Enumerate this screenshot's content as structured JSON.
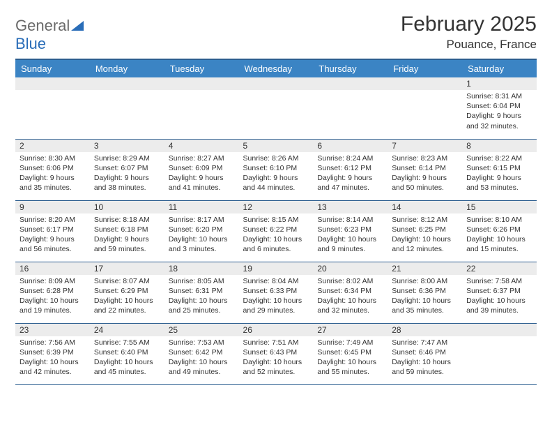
{
  "logo": {
    "line1": "General",
    "line2": "Blue"
  },
  "title": "February 2025",
  "location": "Pouance, France",
  "colors": {
    "header_bg": "#3b84c4",
    "header_text": "#ffffff",
    "rule": "#2a5d8f",
    "daynum_bg": "#ececec",
    "body_text": "#333333",
    "logo_gray": "#6a6a6a",
    "logo_blue": "#2a6db8"
  },
  "weekdays": [
    "Sunday",
    "Monday",
    "Tuesday",
    "Wednesday",
    "Thursday",
    "Friday",
    "Saturday"
  ],
  "weeks": [
    [
      null,
      null,
      null,
      null,
      null,
      null,
      {
        "n": "1",
        "sunrise": "8:31 AM",
        "sunset": "6:04 PM",
        "daylight_l1": "Daylight: 9 hours",
        "daylight_l2": "and 32 minutes."
      }
    ],
    [
      {
        "n": "2",
        "sunrise": "8:30 AM",
        "sunset": "6:06 PM",
        "daylight_l1": "Daylight: 9 hours",
        "daylight_l2": "and 35 minutes."
      },
      {
        "n": "3",
        "sunrise": "8:29 AM",
        "sunset": "6:07 PM",
        "daylight_l1": "Daylight: 9 hours",
        "daylight_l2": "and 38 minutes."
      },
      {
        "n": "4",
        "sunrise": "8:27 AM",
        "sunset": "6:09 PM",
        "daylight_l1": "Daylight: 9 hours",
        "daylight_l2": "and 41 minutes."
      },
      {
        "n": "5",
        "sunrise": "8:26 AM",
        "sunset": "6:10 PM",
        "daylight_l1": "Daylight: 9 hours",
        "daylight_l2": "and 44 minutes."
      },
      {
        "n": "6",
        "sunrise": "8:24 AM",
        "sunset": "6:12 PM",
        "daylight_l1": "Daylight: 9 hours",
        "daylight_l2": "and 47 minutes."
      },
      {
        "n": "7",
        "sunrise": "8:23 AM",
        "sunset": "6:14 PM",
        "daylight_l1": "Daylight: 9 hours",
        "daylight_l2": "and 50 minutes."
      },
      {
        "n": "8",
        "sunrise": "8:22 AM",
        "sunset": "6:15 PM",
        "daylight_l1": "Daylight: 9 hours",
        "daylight_l2": "and 53 minutes."
      }
    ],
    [
      {
        "n": "9",
        "sunrise": "8:20 AM",
        "sunset": "6:17 PM",
        "daylight_l1": "Daylight: 9 hours",
        "daylight_l2": "and 56 minutes."
      },
      {
        "n": "10",
        "sunrise": "8:18 AM",
        "sunset": "6:18 PM",
        "daylight_l1": "Daylight: 9 hours",
        "daylight_l2": "and 59 minutes."
      },
      {
        "n": "11",
        "sunrise": "8:17 AM",
        "sunset": "6:20 PM",
        "daylight_l1": "Daylight: 10 hours",
        "daylight_l2": "and 3 minutes."
      },
      {
        "n": "12",
        "sunrise": "8:15 AM",
        "sunset": "6:22 PM",
        "daylight_l1": "Daylight: 10 hours",
        "daylight_l2": "and 6 minutes."
      },
      {
        "n": "13",
        "sunrise": "8:14 AM",
        "sunset": "6:23 PM",
        "daylight_l1": "Daylight: 10 hours",
        "daylight_l2": "and 9 minutes."
      },
      {
        "n": "14",
        "sunrise": "8:12 AM",
        "sunset": "6:25 PM",
        "daylight_l1": "Daylight: 10 hours",
        "daylight_l2": "and 12 minutes."
      },
      {
        "n": "15",
        "sunrise": "8:10 AM",
        "sunset": "6:26 PM",
        "daylight_l1": "Daylight: 10 hours",
        "daylight_l2": "and 15 minutes."
      }
    ],
    [
      {
        "n": "16",
        "sunrise": "8:09 AM",
        "sunset": "6:28 PM",
        "daylight_l1": "Daylight: 10 hours",
        "daylight_l2": "and 19 minutes."
      },
      {
        "n": "17",
        "sunrise": "8:07 AM",
        "sunset": "6:29 PM",
        "daylight_l1": "Daylight: 10 hours",
        "daylight_l2": "and 22 minutes."
      },
      {
        "n": "18",
        "sunrise": "8:05 AM",
        "sunset": "6:31 PM",
        "daylight_l1": "Daylight: 10 hours",
        "daylight_l2": "and 25 minutes."
      },
      {
        "n": "19",
        "sunrise": "8:04 AM",
        "sunset": "6:33 PM",
        "daylight_l1": "Daylight: 10 hours",
        "daylight_l2": "and 29 minutes."
      },
      {
        "n": "20",
        "sunrise": "8:02 AM",
        "sunset": "6:34 PM",
        "daylight_l1": "Daylight: 10 hours",
        "daylight_l2": "and 32 minutes."
      },
      {
        "n": "21",
        "sunrise": "8:00 AM",
        "sunset": "6:36 PM",
        "daylight_l1": "Daylight: 10 hours",
        "daylight_l2": "and 35 minutes."
      },
      {
        "n": "22",
        "sunrise": "7:58 AM",
        "sunset": "6:37 PM",
        "daylight_l1": "Daylight: 10 hours",
        "daylight_l2": "and 39 minutes."
      }
    ],
    [
      {
        "n": "23",
        "sunrise": "7:56 AM",
        "sunset": "6:39 PM",
        "daylight_l1": "Daylight: 10 hours",
        "daylight_l2": "and 42 minutes."
      },
      {
        "n": "24",
        "sunrise": "7:55 AM",
        "sunset": "6:40 PM",
        "daylight_l1": "Daylight: 10 hours",
        "daylight_l2": "and 45 minutes."
      },
      {
        "n": "25",
        "sunrise": "7:53 AM",
        "sunset": "6:42 PM",
        "daylight_l1": "Daylight: 10 hours",
        "daylight_l2": "and 49 minutes."
      },
      {
        "n": "26",
        "sunrise": "7:51 AM",
        "sunset": "6:43 PM",
        "daylight_l1": "Daylight: 10 hours",
        "daylight_l2": "and 52 minutes."
      },
      {
        "n": "27",
        "sunrise": "7:49 AM",
        "sunset": "6:45 PM",
        "daylight_l1": "Daylight: 10 hours",
        "daylight_l2": "and 55 minutes."
      },
      {
        "n": "28",
        "sunrise": "7:47 AM",
        "sunset": "6:46 PM",
        "daylight_l1": "Daylight: 10 hours",
        "daylight_l2": "and 59 minutes."
      },
      null
    ]
  ],
  "labels": {
    "sunrise": "Sunrise:",
    "sunset": "Sunset:"
  }
}
